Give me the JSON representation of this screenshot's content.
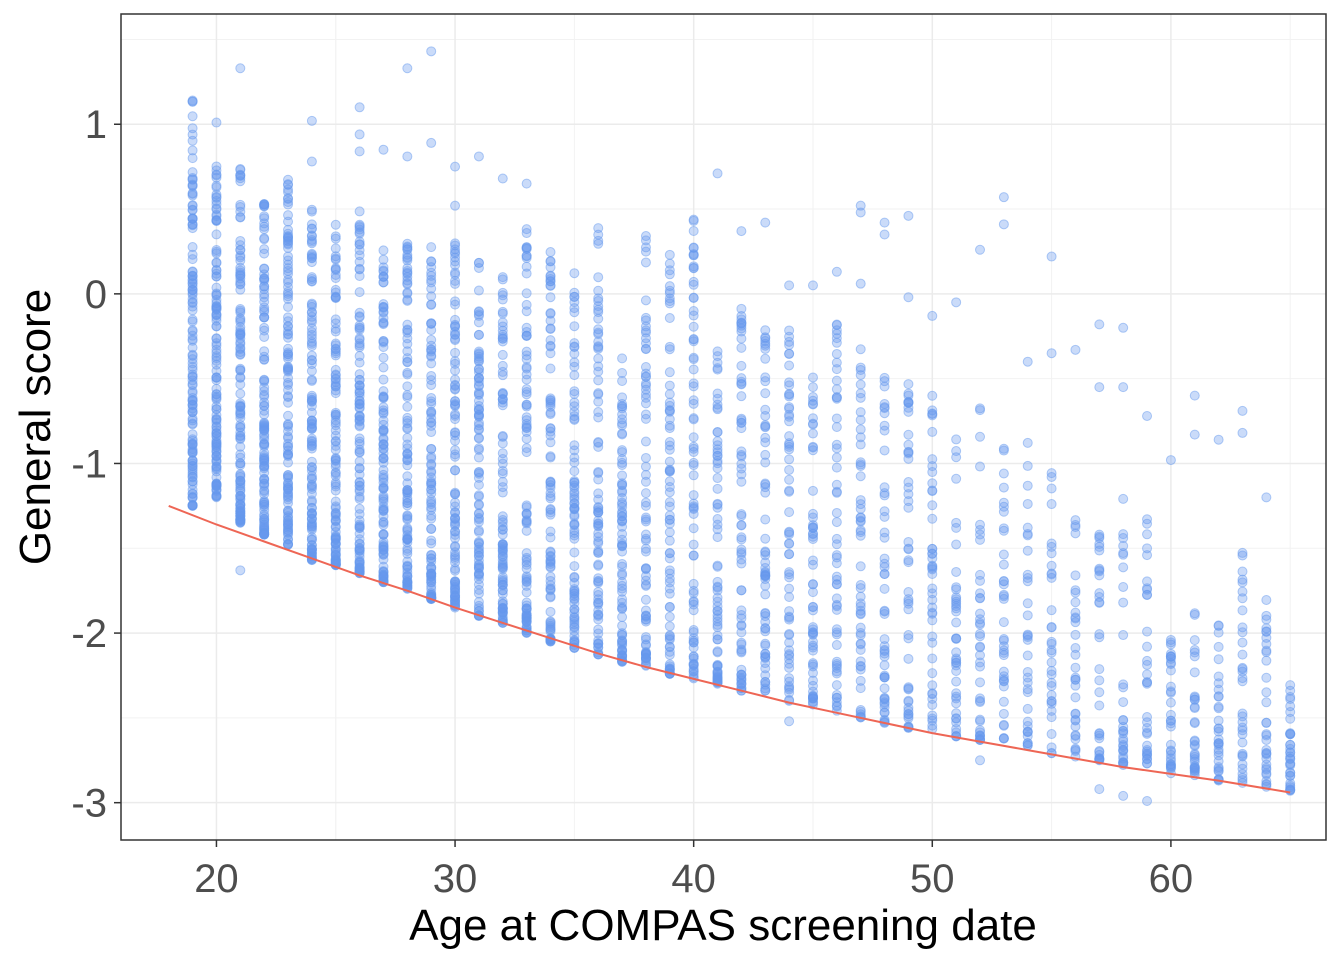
{
  "chart_data": {
    "type": "scatter",
    "title": "",
    "xlabel": "Age at COMPAS screening date",
    "ylabel": "General score",
    "xlim": [
      16,
      66.5
    ],
    "ylim": [
      -3.22,
      1.65
    ],
    "x_ticks": [
      20,
      30,
      40,
      50,
      60
    ],
    "y_ticks": [
      1,
      0,
      -1,
      -2,
      -3
    ],
    "x_tick_labels": [
      "20",
      "30",
      "40",
      "50",
      "60"
    ],
    "y_tick_labels": [
      "1",
      "0",
      "-1",
      "-2",
      "-3"
    ],
    "grid": true,
    "legend": "none",
    "series": [
      {
        "type": "scatter",
        "color": "#6699ee",
        "opacity": 0.35,
        "columns": [
          {
            "x": 19,
            "ymin": -1.25,
            "ymax": 1.15
          },
          {
            "x": 20,
            "ymin": -1.2,
            "ymax": 0.78
          },
          {
            "x": 21,
            "ymin": -1.35,
            "ymax": 0.76
          },
          {
            "x": 22,
            "ymin": -1.42,
            "ymax": 0.65
          },
          {
            "x": 23,
            "ymin": -1.48,
            "ymax": 0.68
          },
          {
            "x": 24,
            "ymin": -1.57,
            "ymax": 0.6
          },
          {
            "x": 25,
            "ymin": -1.6,
            "ymax": 0.48
          },
          {
            "x": 26,
            "ymin": -1.65,
            "ymax": 0.5
          },
          {
            "x": 27,
            "ymin": -1.7,
            "ymax": 0.38
          },
          {
            "x": 28,
            "ymin": -1.74,
            "ymax": 0.4
          },
          {
            "x": 29,
            "ymin": -1.8,
            "ymax": 0.38
          },
          {
            "x": 30,
            "ymin": -1.85,
            "ymax": 0.3
          },
          {
            "x": 31,
            "ymin": -1.9,
            "ymax": 0.2
          },
          {
            "x": 32,
            "ymin": -1.94,
            "ymax": 0.15
          },
          {
            "x": 33,
            "ymin": -2.0,
            "ymax": 0.4
          },
          {
            "x": 34,
            "ymin": -2.05,
            "ymax": 0.3
          },
          {
            "x": 35,
            "ymin": -2.09,
            "ymax": 0.2
          },
          {
            "x": 36,
            "ymin": -2.13,
            "ymax": 0.4
          },
          {
            "x": 37,
            "ymin": -2.17,
            "ymax": -0.35
          },
          {
            "x": 38,
            "ymin": -2.2,
            "ymax": 0.35
          },
          {
            "x": 39,
            "ymin": -2.24,
            "ymax": 0.2
          },
          {
            "x": 40,
            "ymin": -2.27,
            "ymax": 0.44
          },
          {
            "x": 41,
            "ymin": -2.3,
            "ymax": -0.3
          },
          {
            "x": 42,
            "ymin": -2.34,
            "ymax": -0.05
          },
          {
            "x": 43,
            "ymin": -2.37,
            "ymax": -0.2
          },
          {
            "x": 44,
            "ymin": -2.4,
            "ymax": -0.2
          },
          {
            "x": 45,
            "ymin": -2.43,
            "ymax": -0.3
          },
          {
            "x": 46,
            "ymin": -2.47,
            "ymax": -0.1
          },
          {
            "x": 47,
            "ymin": -2.5,
            "ymax": -0.3
          },
          {
            "x": 48,
            "ymin": -2.53,
            "ymax": -0.4
          },
          {
            "x": 49,
            "ymin": -2.56,
            "ymax": -0.5
          },
          {
            "x": 50,
            "ymin": -2.58,
            "ymax": -0.6
          },
          {
            "x": 51,
            "ymin": -2.61,
            "ymax": -0.8
          },
          {
            "x": 52,
            "ymin": -2.63,
            "ymax": -0.6
          },
          {
            "x": 53,
            "ymin": -2.66,
            "ymax": -0.9
          },
          {
            "x": 54,
            "ymin": -2.68,
            "ymax": -0.8
          },
          {
            "x": 55,
            "ymin": -2.71,
            "ymax": -1.0
          },
          {
            "x": 56,
            "ymin": -2.73,
            "ymax": -1.2
          },
          {
            "x": 57,
            "ymin": -2.75,
            "ymax": -1.3
          },
          {
            "x": 58,
            "ymin": -2.78,
            "ymax": -1.2
          },
          {
            "x": 59,
            "ymin": -2.8,
            "ymax": -1.3
          },
          {
            "x": 60,
            "ymin": -2.83,
            "ymax": -2.0
          },
          {
            "x": 61,
            "ymin": -2.85,
            "ymax": -1.8
          },
          {
            "x": 62,
            "ymin": -2.87,
            "ymax": -1.9
          },
          {
            "x": 63,
            "ymin": -2.89,
            "ymax": -1.4
          },
          {
            "x": 64,
            "ymin": -2.91,
            "ymax": -1.8
          },
          {
            "x": 65,
            "ymin": -2.93,
            "ymax": -2.3
          }
        ],
        "outliers": [
          {
            "x": 21,
            "y": 1.33
          },
          {
            "x": 28,
            "y": 1.33
          },
          {
            "x": 29,
            "y": 1.43
          },
          {
            "x": 26,
            "y": 1.1
          },
          {
            "x": 24,
            "y": 1.02
          },
          {
            "x": 24,
            "y": 0.78
          },
          {
            "x": 20,
            "y": 1.01
          },
          {
            "x": 26,
            "y": 0.94
          },
          {
            "x": 26,
            "y": 0.84
          },
          {
            "x": 27,
            "y": 0.85
          },
          {
            "x": 29,
            "y": 0.89
          },
          {
            "x": 28,
            "y": 0.81
          },
          {
            "x": 31,
            "y": 0.81
          },
          {
            "x": 30,
            "y": 0.75
          },
          {
            "x": 32,
            "y": 0.68
          },
          {
            "x": 33,
            "y": 0.65
          },
          {
            "x": 41,
            "y": 0.71
          },
          {
            "x": 30,
            "y": 0.52
          },
          {
            "x": 40,
            "y": 0.43
          },
          {
            "x": 43,
            "y": 0.42
          },
          {
            "x": 47,
            "y": 0.52
          },
          {
            "x": 47,
            "y": 0.48
          },
          {
            "x": 49,
            "y": 0.46
          },
          {
            "x": 53,
            "y": 0.57
          },
          {
            "x": 53,
            "y": 0.41
          },
          {
            "x": 52,
            "y": 0.26
          },
          {
            "x": 55,
            "y": 0.22
          },
          {
            "x": 42,
            "y": 0.37
          },
          {
            "x": 39,
            "y": 0.23
          },
          {
            "x": 48,
            "y": 0.42
          },
          {
            "x": 48,
            "y": 0.35
          },
          {
            "x": 40,
            "y": 0.27
          },
          {
            "x": 46,
            "y": 0.13
          },
          {
            "x": 44,
            "y": 0.05
          },
          {
            "x": 45,
            "y": 0.05
          },
          {
            "x": 47,
            "y": 0.06
          },
          {
            "x": 21,
            "y": -1.63
          },
          {
            "x": 44,
            "y": -2.52
          },
          {
            "x": 52,
            "y": -2.75
          },
          {
            "x": 57,
            "y": -2.92
          },
          {
            "x": 58,
            "y": -2.96
          },
          {
            "x": 59,
            "y": -2.99
          },
          {
            "x": 57,
            "y": -0.55
          },
          {
            "x": 58,
            "y": -0.55
          },
          {
            "x": 59,
            "y": -0.72
          },
          {
            "x": 60,
            "y": -0.98
          },
          {
            "x": 61,
            "y": -0.6
          },
          {
            "x": 61,
            "y": -0.83
          },
          {
            "x": 62,
            "y": -0.86
          },
          {
            "x": 63,
            "y": -0.69
          },
          {
            "x": 63,
            "y": -0.82
          },
          {
            "x": 64,
            "y": -1.2
          },
          {
            "x": 56,
            "y": -0.33
          },
          {
            "x": 55,
            "y": -0.35
          },
          {
            "x": 57,
            "y": -0.18
          },
          {
            "x": 58,
            "y": -0.2
          },
          {
            "x": 54,
            "y": -0.4
          },
          {
            "x": 51,
            "y": -0.05
          },
          {
            "x": 50,
            "y": -0.13
          },
          {
            "x": 49,
            "y": -0.02
          }
        ]
      },
      {
        "type": "line",
        "color": "#ee6655",
        "points": [
          {
            "x": 18,
            "y": -1.25
          },
          {
            "x": 20,
            "y": -1.36
          },
          {
            "x": 22,
            "y": -1.46
          },
          {
            "x": 24,
            "y": -1.56
          },
          {
            "x": 26,
            "y": -1.66
          },
          {
            "x": 28,
            "y": -1.75
          },
          {
            "x": 30,
            "y": -1.85
          },
          {
            "x": 32,
            "y": -1.94
          },
          {
            "x": 34,
            "y": -2.03
          },
          {
            "x": 36,
            "y": -2.12
          },
          {
            "x": 38,
            "y": -2.2
          },
          {
            "x": 40,
            "y": -2.27
          },
          {
            "x": 42,
            "y": -2.34
          },
          {
            "x": 44,
            "y": -2.41
          },
          {
            "x": 46,
            "y": -2.47
          },
          {
            "x": 48,
            "y": -2.53
          },
          {
            "x": 50,
            "y": -2.59
          },
          {
            "x": 52,
            "y": -2.64
          },
          {
            "x": 54,
            "y": -2.69
          },
          {
            "x": 56,
            "y": -2.74
          },
          {
            "x": 58,
            "y": -2.79
          },
          {
            "x": 60,
            "y": -2.83
          },
          {
            "x": 62,
            "y": -2.87
          },
          {
            "x": 65,
            "y": -2.94
          }
        ]
      }
    ]
  }
}
